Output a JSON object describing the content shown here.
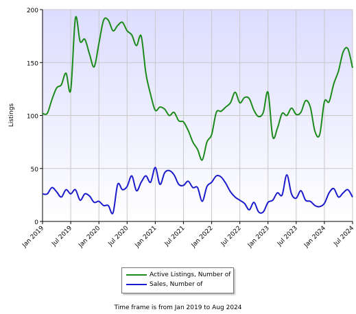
{
  "chart_data": {
    "type": "line",
    "ylabel": "Listings",
    "ylim": [
      0,
      200
    ],
    "yticks": [
      0,
      50,
      100,
      150,
      200
    ],
    "x_tick_labels": [
      "Jan 2019",
      "Jul 2019",
      "Jan 2020",
      "Jul 2020",
      "Jan 2021",
      "Jul 2021",
      "Jan 2022",
      "Jul 2022",
      "Jan 2023",
      "Jul 2023",
      "Jan 2024",
      "Jul 2024"
    ],
    "x_start": "Jan 2019",
    "x_end": "Aug 2024",
    "grid": true,
    "legend_position": "bottom-center",
    "series": [
      {
        "name": "Active Listings, Number of",
        "color": "#1a8a1a",
        "values": [
          102,
          102,
          115,
          126,
          129,
          140,
          124,
          192,
          170,
          172,
          158,
          146,
          168,
          190,
          190,
          180,
          185,
          188,
          180,
          176,
          166,
          175,
          140,
          120,
          105,
          108,
          106,
          100,
          103,
          95,
          94,
          86,
          75,
          68,
          58,
          75,
          82,
          103,
          104,
          108,
          112,
          122,
          112,
          117,
          116,
          105,
          99,
          103,
          122,
          80,
          88,
          102,
          100,
          107,
          101,
          103,
          114,
          108,
          85,
          82,
          113,
          113,
          130,
          142,
          160,
          163,
          145
        ]
      },
      {
        "name": "Sales, Number of",
        "color": "#1a1acc",
        "values": [
          26,
          26,
          32,
          28,
          23,
          30,
          26,
          30,
          20,
          26,
          24,
          18,
          19,
          15,
          15,
          8,
          35,
          30,
          33,
          43,
          29,
          37,
          43,
          37,
          51,
          35,
          46,
          48,
          44,
          35,
          34,
          38,
          32,
          32,
          19,
          33,
          37,
          43,
          42,
          36,
          28,
          23,
          20,
          17,
          11,
          18,
          9,
          9,
          18,
          20,
          27,
          25,
          44,
          26,
          22,
          29,
          20,
          19,
          15,
          14,
          17,
          27,
          31,
          23,
          27,
          30,
          23
        ]
      }
    ]
  },
  "legend": {
    "items": [
      {
        "label": "Active Listings, Number of",
        "color": "#1a8a1a"
      },
      {
        "label": "Sales, Number of",
        "color": "#1a1acc"
      }
    ]
  },
  "caption": "Time frame is from Jan 2019 to Aug 2024"
}
